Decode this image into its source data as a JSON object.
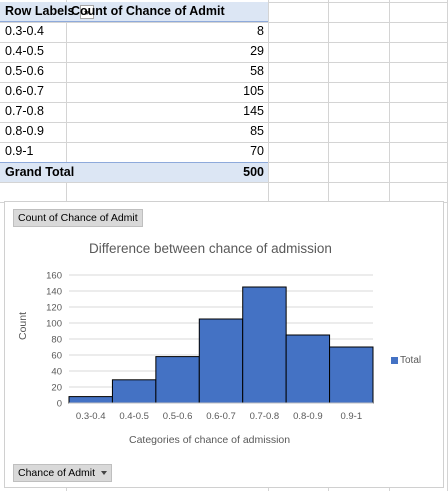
{
  "pivot": {
    "header": {
      "row_labels": "Row Labels",
      "value_label": "Count of Chance of Admit"
    },
    "rows": [
      {
        "label": "0.3-0.4",
        "value": "8"
      },
      {
        "label": "0.4-0.5",
        "value": "29"
      },
      {
        "label": "0.5-0.6",
        "value": "58"
      },
      {
        "label": "0.6-0.7",
        "value": "105"
      },
      {
        "label": "0.7-0.8",
        "value": "145"
      },
      {
        "label": "0.8-0.9",
        "value": "85"
      },
      {
        "label": "0.9-1",
        "value": "70"
      }
    ],
    "total": {
      "label": "Grand Total",
      "value": "500"
    }
  },
  "chart": {
    "value_field_button": "Count of Chance of Admit",
    "axis_field_button": "Chance of Admit",
    "colors": {
      "bar": "#4472c4",
      "bar_edge": "#000000",
      "gridline": "#d9d9d9",
      "header_fill": "#dce6f4"
    }
  },
  "chart_data": {
    "type": "bar",
    "title": "Difference  between chance of admission",
    "xlabel": "Categories of chance of admission",
    "ylabel": "Count",
    "categories": [
      "0.3-0.4",
      "0.4-0.5",
      "0.5-0.6",
      "0.6-0.7",
      "0.7-0.8",
      "0.8-0.9",
      "0.9-1"
    ],
    "series": [
      {
        "name": "Total",
        "values": [
          8,
          29,
          58,
          105,
          145,
          85,
          70
        ]
      }
    ],
    "ylim": [
      0,
      160
    ],
    "yticks": [
      "0",
      "20",
      "40",
      "60",
      "80",
      "100",
      "120",
      "140",
      "160"
    ],
    "grid": true,
    "legend": "right"
  }
}
